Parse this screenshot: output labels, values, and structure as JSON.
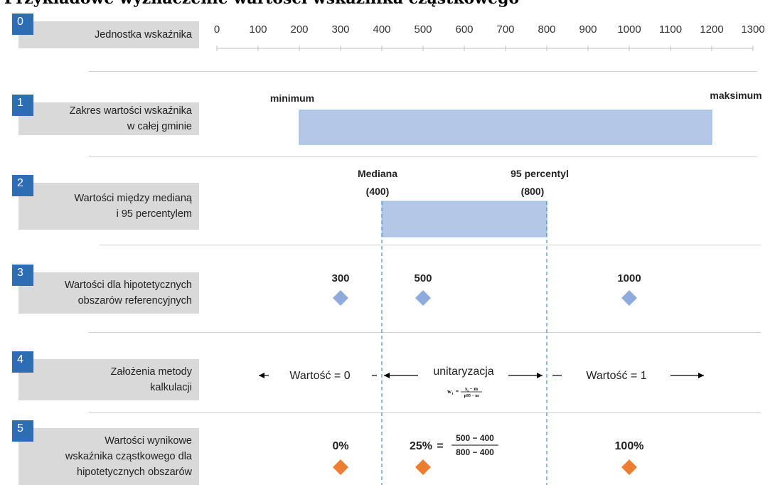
{
  "title": "Przykładowe wyznaczenie wartości wskaźnika cząstkowego",
  "rows": [
    {
      "num": "0",
      "label": "Jednostka wskaźnika"
    },
    {
      "num": "1",
      "label": "Zakres wartości wskaźnika\nw całej gminie"
    },
    {
      "num": "2",
      "label": "Wartości między medianą\ni 95 percentylem"
    },
    {
      "num": "3",
      "label": "Wartości dla hipotetycznych\nobszarów referencyjnych"
    },
    {
      "num": "4",
      "label": "Założenia metody\nkalkulacji"
    },
    {
      "num": "5",
      "label": "Wartości wynikowe\nwskaźnika cząstkowego dla\nhipotetycznych obszarów"
    }
  ],
  "scale": {
    "ticks": [
      0,
      100,
      200,
      300,
      400,
      500,
      600,
      700,
      800,
      900,
      1000,
      1100,
      1200,
      1300
    ]
  },
  "range": {
    "min_value": 200,
    "max_value": 1200,
    "min_label": "minimum",
    "max_label": "maksimum"
  },
  "median_band": {
    "from": 400,
    "to": 800,
    "median_label": "Mediana",
    "median_value_label": "(400)",
    "p95_label": "95 percentyl",
    "p95_value_label": "(800)"
  },
  "points": [
    {
      "value": 300,
      "label": "300",
      "result": "0%"
    },
    {
      "value": 500,
      "label": "500",
      "result": "25%"
    },
    {
      "value": 1000,
      "label": "1000",
      "result": "100%"
    }
  ],
  "method": {
    "left_text": "Wartość = 0",
    "middle_text": "unitaryzacja",
    "right_text": "Wartość = 1",
    "formula_lhs": "w",
    "formula_lhs_sub": "i",
    "formula_num": "x",
    "formula_num_sub": "i",
    "formula_num_rest": " − m",
    "formula_den": "p95 − m"
  },
  "example_formula": {
    "numerator": "500 − 400",
    "denominator": "800 − 400"
  },
  "colors": {
    "band": "#b4c7e7",
    "band_border": "#9dc3e6",
    "diamond_blue": "#8faadc",
    "diamond_orange": "#ed7d31",
    "badge": "#2e6db3",
    "label_bg": "#d9d9d9",
    "dashed": "#2e75b6"
  }
}
